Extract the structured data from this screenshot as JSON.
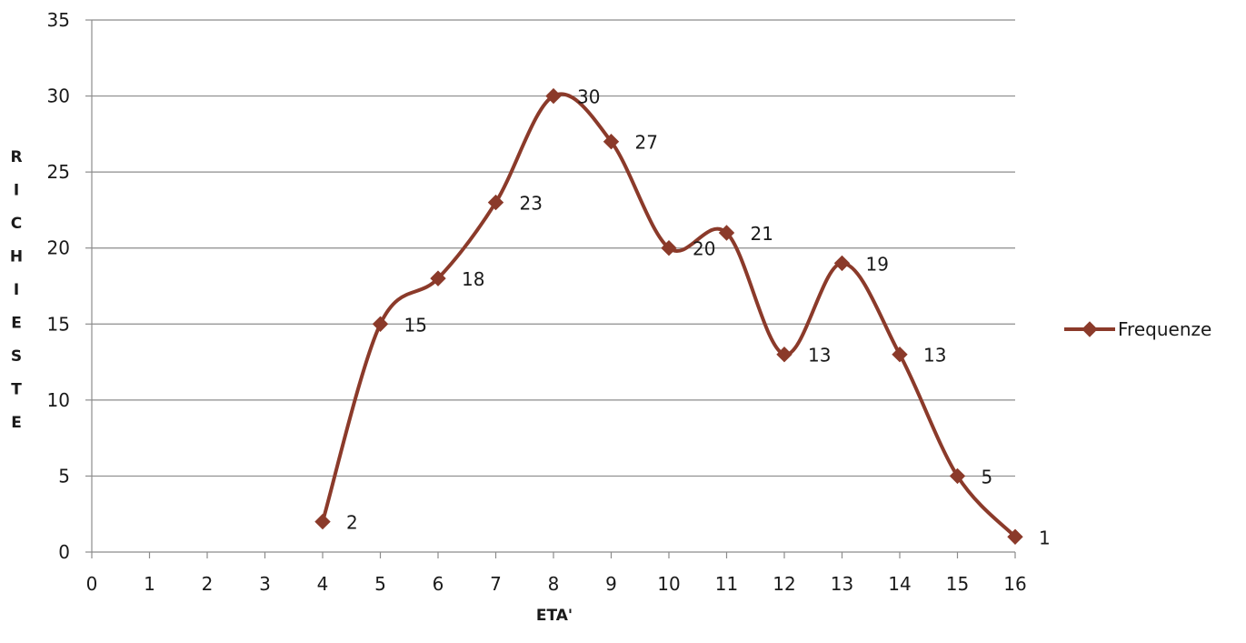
{
  "chart_data": {
    "type": "line",
    "smooth": true,
    "x": [
      4,
      5,
      6,
      7,
      8,
      9,
      10,
      11,
      12,
      13,
      14,
      15,
      16
    ],
    "series": [
      {
        "name": "Frequenze",
        "values": [
          2,
          15,
          18,
          23,
          30,
          27,
          20,
          21,
          13,
          19,
          13,
          5,
          1
        ],
        "color": "#8B3A2A",
        "marker": "diamond"
      }
    ],
    "xlabel": "ETA'",
    "ylabel": "RICHIESTE",
    "xlim": [
      0,
      16
    ],
    "ylim": [
      0,
      35
    ],
    "xticks": [
      0,
      1,
      2,
      3,
      4,
      5,
      6,
      7,
      8,
      9,
      10,
      11,
      12,
      13,
      14,
      15,
      16
    ],
    "yticks": [
      0,
      5,
      10,
      15,
      20,
      25,
      30,
      35
    ],
    "grid": "horizontal",
    "legend": {
      "position": "right",
      "entries": [
        "Frequenze"
      ]
    },
    "data_labels": true,
    "colors": {
      "series": "#8B3A2A",
      "grid": "#8c8c8c",
      "text": "#1a1a1a"
    }
  }
}
